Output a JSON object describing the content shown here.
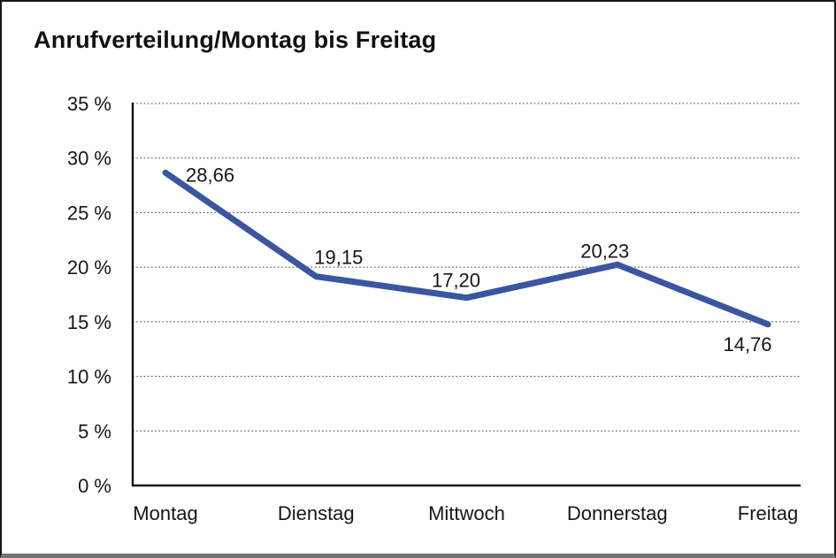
{
  "chart_data": {
    "type": "line",
    "title": "Anrufverteilung/Montag bis Freitag",
    "categories": [
      "Montag",
      "Dienstag",
      "Mittwoch",
      "Donnerstag",
      "Freitag"
    ],
    "values": [
      28.66,
      19.15,
      17.2,
      20.23,
      14.76
    ],
    "point_labels": [
      "28,66",
      "19,15",
      "17,20",
      "20,23",
      "14,76"
    ],
    "xlabel": "",
    "ylabel": "",
    "ylim": [
      0,
      35
    ],
    "ytick_step": 5,
    "ytick_labels": [
      "0 %",
      "5 %",
      "10 %",
      "15 %",
      "20 %",
      "25 %",
      "30 %",
      "35 %"
    ],
    "grid": "horizontal-dotted",
    "legend": "none",
    "line_color": "#3A56A0",
    "axis_color": "#111111",
    "text_color": "#161616"
  }
}
